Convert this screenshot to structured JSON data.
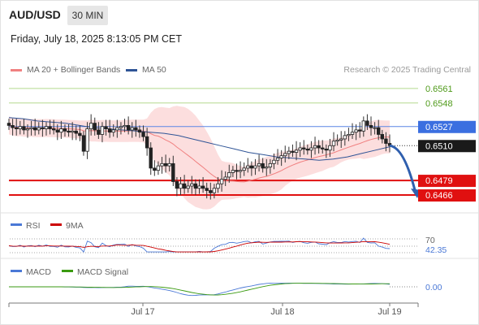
{
  "header": {
    "symbol": "AUD/USD",
    "timeframe": "30 MIN",
    "datetime": "Friday, July 18, 2025 8:13:05 PM CET"
  },
  "legend": {
    "ma20": {
      "label": "MA 20 + Bollinger Bands",
      "color": "#f08080"
    },
    "ma50": {
      "label": "MA 50",
      "color": "#2f5496"
    },
    "credit": "Research © 2025 Trading Central"
  },
  "chart_data": {
    "type": "candlestick",
    "x_ticks": [
      "Jul 17",
      "Jul 18",
      "Jul 19"
    ],
    "price_levels": [
      {
        "value": "0.6561",
        "role": "resistance",
        "color": "#8fc25a"
      },
      {
        "value": "0.6548",
        "role": "resistance",
        "color": "#8fc25a"
      },
      {
        "value": "0.6527",
        "role": "pivot",
        "color": "#3b6fe0"
      },
      {
        "value": "0.6510",
        "role": "last price",
        "color": "#1a1a1a"
      },
      {
        "value": "0.6479",
        "role": "support",
        "color": "#e01010"
      },
      {
        "value": "0.6466",
        "role": "support",
        "color": "#e01010"
      }
    ],
    "price_range": [
      0.6453,
      0.6571
    ],
    "close_series": [
      0.6528,
      0.6526,
      0.6525,
      0.6527,
      0.6524,
      0.6525,
      0.6526,
      0.6524,
      0.6526,
      0.6525,
      0.6527,
      0.6525,
      0.6524,
      0.6522,
      0.6525,
      0.6523,
      0.6522,
      0.6523,
      0.6521,
      0.6519,
      0.6505,
      0.6525,
      0.653,
      0.6524,
      0.652,
      0.6527,
      0.6525,
      0.6522,
      0.6524,
      0.6526,
      0.6527,
      0.6528,
      0.6524,
      0.6526,
      0.6524,
      0.6522,
      0.6518,
      0.6508,
      0.649,
      0.6488,
      0.6492,
      0.6494,
      0.6492,
      0.6494,
      0.6478,
      0.6472,
      0.6476,
      0.6472,
      0.6474,
      0.6476,
      0.6472,
      0.6474,
      0.6472,
      0.647,
      0.6468,
      0.6472,
      0.6476,
      0.648,
      0.6482,
      0.6486,
      0.6488,
      0.6487,
      0.6488,
      0.649,
      0.6492,
      0.649,
      0.6492,
      0.6494,
      0.649,
      0.6491,
      0.6494,
      0.6497,
      0.6499,
      0.6501,
      0.6503,
      0.6505,
      0.6504,
      0.6506,
      0.6508,
      0.6507,
      0.6506,
      0.6508,
      0.651,
      0.6508,
      0.6507,
      0.6506,
      0.651,
      0.6514,
      0.6515,
      0.6516,
      0.6519,
      0.652,
      0.6522,
      0.6524,
      0.6523,
      0.6532,
      0.6528,
      0.6526,
      0.6526,
      0.652,
      0.6516,
      0.6512,
      0.651
    ],
    "ma50_series": [
      0.6535,
      0.6534,
      0.6532,
      0.6531,
      0.653,
      0.6528,
      0.6526,
      0.6525,
      0.6524,
      0.6523,
      0.6522,
      0.6521,
      0.6519,
      0.6516,
      0.6513,
      0.651,
      0.6507,
      0.6504,
      0.6502,
      0.65,
      0.6499,
      0.6498,
      0.6497,
      0.6498,
      0.65,
      0.6503,
      0.6506,
      0.6509
    ],
    "rsi": {
      "label": "RSI",
      "ma_label": "9MA",
      "level": "70",
      "value": "42.35",
      "rsi_color": "#4a78d6",
      "ma_color": "#cc0000"
    },
    "macd": {
      "label": "MACD",
      "signal_label": "MACD Signal",
      "value": "0.00",
      "macd_color": "#4a78d6",
      "signal_color": "#3a9a10"
    }
  }
}
